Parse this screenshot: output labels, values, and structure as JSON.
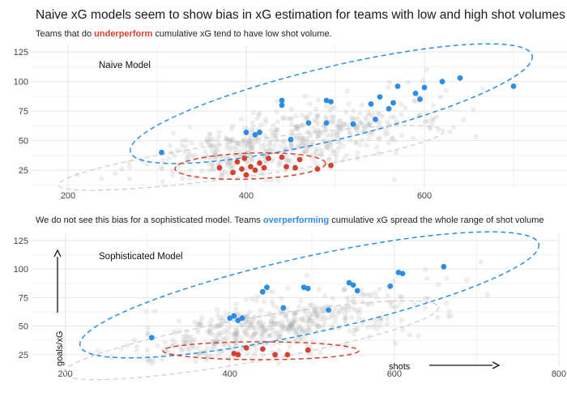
{
  "title": "Naive xG models seem to show bias in xG estimation for teams with low and high shot volumes",
  "subtitle1": {
    "pre": "Teams that do ",
    "highlight": "underperform",
    "post": " cumulative xG tend to have low shot volume."
  },
  "subtitle2": {
    "pre": "We do not see this bias for a sophisticated model. Teams ",
    "highlight": "overperforming",
    "post": " cumulative xG spread the whole range of shot volume"
  },
  "colors": {
    "under": "#d6402f",
    "over": "#2a8ee6",
    "background_points": "#9a9a9a",
    "grid": "#e6e6e6"
  },
  "chart_data": [
    {
      "type": "scatter",
      "annotation": "Naive Model",
      "xlim": [
        160,
        760
      ],
      "ylim": [
        10,
        132
      ],
      "x_ticks": [
        200,
        400,
        600
      ],
      "y_ticks": [
        25,
        50,
        75,
        100,
        125
      ],
      "series": [
        {
          "name": "",
          "role": "underperforming",
          "points": [
            [
              370,
              27
            ],
            [
              385,
              23
            ],
            [
              390,
              32
            ],
            [
              395,
              26
            ],
            [
              398,
              35
            ],
            [
              400,
              21
            ],
            [
              405,
              28
            ],
            [
              410,
              25
            ],
            [
              415,
              31
            ],
            [
              420,
              27
            ],
            [
              425,
              35
            ],
            [
              440,
              36
            ],
            [
              445,
              28
            ],
            [
              455,
              27
            ],
            [
              460,
              34
            ],
            [
              480,
              26
            ],
            [
              495,
              29
            ]
          ]
        },
        {
          "name": "",
          "role": "overperforming",
          "points": [
            [
              305,
              40
            ],
            [
              400,
              57
            ],
            [
              410,
              55
            ],
            [
              415,
              57
            ],
            [
              440,
              80
            ],
            [
              440,
              84
            ],
            [
              450,
              51
            ],
            [
              470,
              65
            ],
            [
              490,
              65
            ],
            [
              490,
              84
            ],
            [
              495,
              83
            ],
            [
              520,
              64
            ],
            [
              540,
              81
            ],
            [
              545,
              68
            ],
            [
              550,
              87
            ],
            [
              560,
              77
            ],
            [
              565,
              82
            ],
            [
              570,
              96
            ],
            [
              590,
              90
            ],
            [
              595,
              85
            ],
            [
              600,
              95
            ],
            [
              620,
              100
            ],
            [
              640,
              103
            ],
            [
              700,
              96
            ]
          ]
        }
      ]
    },
    {
      "type": "scatter",
      "annotation": "Sophisticated Model",
      "xlim": [
        160,
        800
      ],
      "ylim": [
        15,
        132
      ],
      "x_ticks": [
        200,
        400,
        600,
        800
      ],
      "y_ticks": [
        25,
        50,
        75,
        100,
        125
      ],
      "xlabel": "shots",
      "ylabel": "goals/xG",
      "series": [
        {
          "name": "",
          "role": "underperforming",
          "points": [
            [
              405,
              26
            ],
            [
              410,
              25
            ],
            [
              420,
              31
            ],
            [
              440,
              30
            ],
            [
              455,
              25
            ],
            [
              470,
              25
            ],
            [
              495,
              29
            ]
          ]
        },
        {
          "name": "",
          "role": "overperforming",
          "points": [
            [
              305,
              40
            ],
            [
              400,
              57
            ],
            [
              405,
              59
            ],
            [
              410,
              55
            ],
            [
              415,
              57
            ],
            [
              440,
              80
            ],
            [
              445,
              84
            ],
            [
              465,
              66
            ],
            [
              490,
              84
            ],
            [
              495,
              83
            ],
            [
              520,
              64
            ],
            [
              545,
              88
            ],
            [
              550,
              86
            ],
            [
              555,
              81
            ],
            [
              595,
              85
            ],
            [
              605,
              97
            ],
            [
              610,
              96
            ],
            [
              660,
              102
            ]
          ]
        }
      ]
    }
  ]
}
